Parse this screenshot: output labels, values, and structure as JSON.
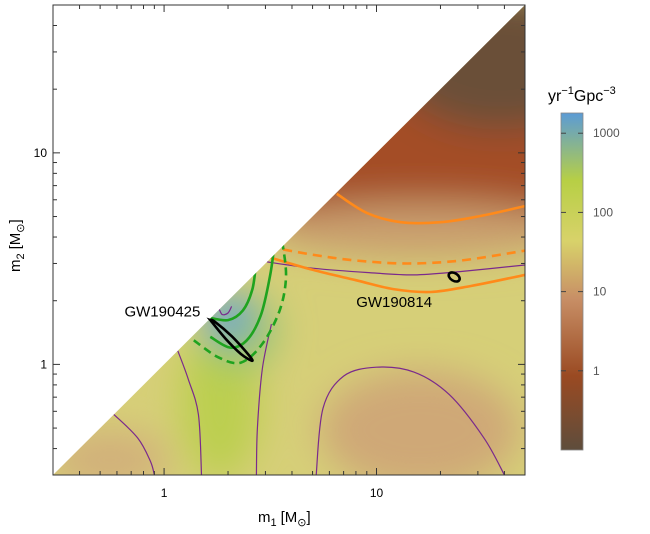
{
  "chart_data": {
    "type": "heatmap",
    "title": "",
    "xlabel_main": "m",
    "xlabel_sub": "1",
    "xlabel_unit": "[M",
    "xlabel_unit_sub": "⊙",
    "xlabel_close": "]",
    "ylabel_main": "m",
    "ylabel_sub": "2",
    "ylabel_unit": "[M",
    "ylabel_unit_sub": "⊙",
    "ylabel_close": "]",
    "x_scale": "log",
    "y_scale": "log",
    "xlim": [
      0.3,
      50
    ],
    "ylim": [
      0.3,
      50
    ],
    "x_ticks": [
      {
        "value": 1,
        "label": "1"
      },
      {
        "value": 10,
        "label": "10"
      }
    ],
    "y_ticks": [
      {
        "value": 1,
        "label": "1"
      },
      {
        "value": 10,
        "label": "10"
      }
    ],
    "colorbar": {
      "label_prefix": "yr",
      "label_exp1": "−1",
      "label_mid": "Gpc",
      "label_exp2": "−3",
      "scale": "log",
      "range": [
        0.1,
        1800
      ],
      "ticks": [
        {
          "value": 1000,
          "label": "1000"
        },
        {
          "value": 100,
          "label": "100"
        },
        {
          "value": 10,
          "label": "10"
        },
        {
          "value": 1,
          "label": "1"
        }
      ],
      "colors": [
        "#5e4d3c",
        "#9a4a22",
        "#c88f66",
        "#d8d26a",
        "#b7cf45",
        "#5b9bd5"
      ]
    },
    "region": "m2 <= m1",
    "annotations": [
      {
        "text": "GW190425",
        "m1": 1.6,
        "m2": 1.4
      },
      {
        "text": "GW190814",
        "m1": 23.2,
        "m2": 2.59
      }
    ],
    "event_contours": [
      {
        "name": "GW190425",
        "color": "#000000",
        "points": [
          [
            1.65,
            1.62
          ],
          [
            1.95,
            1.32
          ],
          [
            2.3,
            1.12
          ],
          [
            2.6,
            1.04
          ],
          [
            2.48,
            1.12
          ],
          [
            2.08,
            1.36
          ],
          [
            1.72,
            1.6
          ]
        ]
      },
      {
        "name": "GW190814",
        "color": "#000000",
        "center": [
          23.2,
          2.59
        ],
        "rx": 0.045,
        "ry": 0.018
      }
    ],
    "green_contours": [
      {
        "style": "solid",
        "points": [
          [
            1.6,
            1.67
          ],
          [
            2.0,
            1.62
          ],
          [
            2.35,
            1.8
          ],
          [
            2.6,
            2.25
          ],
          [
            2.7,
            2.9
          ]
        ]
      },
      {
        "style": "solid",
        "points": [
          [
            1.65,
            1.35
          ],
          [
            2.05,
            1.2
          ],
          [
            2.45,
            1.3
          ],
          [
            2.85,
            1.7
          ],
          [
            3.15,
            2.6
          ],
          [
            3.3,
            3.6
          ]
        ]
      },
      {
        "style": "dashed",
        "points": [
          [
            1.38,
            1.3
          ],
          [
            1.8,
            1.08
          ],
          [
            2.3,
            1.02
          ],
          [
            2.9,
            1.25
          ],
          [
            3.5,
            1.8
          ],
          [
            3.75,
            2.6
          ],
          [
            3.6,
            3.8
          ]
        ]
      }
    ],
    "orange_contours": [
      {
        "style": "solid",
        "points": [
          [
            6.5,
            6.4
          ],
          [
            9,
            5.2
          ],
          [
            13,
            4.7
          ],
          [
            20,
            4.7
          ],
          [
            30,
            5.0
          ],
          [
            50,
            5.6
          ]
        ]
      },
      {
        "style": "dashed",
        "points": [
          [
            3.1,
            3.6
          ],
          [
            5,
            3.3
          ],
          [
            8,
            3.1
          ],
          [
            14,
            3.0
          ],
          [
            25,
            3.1
          ],
          [
            50,
            3.45
          ]
        ]
      },
      {
        "style": "solid",
        "points": [
          [
            3.0,
            3.25
          ],
          [
            5,
            2.8
          ],
          [
            8,
            2.5
          ],
          [
            12,
            2.27
          ],
          [
            18,
            2.2
          ],
          [
            28,
            2.35
          ],
          [
            50,
            2.65
          ]
        ]
      }
    ],
    "purple_contours": [
      {
        "points": [
          [
            1.82,
            1.82
          ],
          [
            1.88,
            1.72
          ],
          [
            2.0,
            1.75
          ],
          [
            2.08,
            1.88
          ]
        ]
      },
      {
        "points": [
          [
            0.58,
            0.58
          ],
          [
            0.75,
            0.45
          ],
          [
            0.86,
            0.35
          ],
          [
            0.9,
            0.3
          ]
        ]
      },
      {
        "points": [
          [
            1.16,
            1.16
          ],
          [
            1.3,
            0.85
          ],
          [
            1.45,
            0.58
          ],
          [
            1.5,
            0.3
          ]
        ]
      },
      {
        "points": [
          [
            3.2,
            1.55
          ],
          [
            2.9,
            0.95
          ],
          [
            2.75,
            0.5
          ],
          [
            2.72,
            0.3
          ]
        ]
      },
      {
        "points": [
          [
            5.2,
            0.3
          ],
          [
            5.6,
            0.62
          ],
          [
            7,
            0.88
          ],
          [
            10,
            0.97
          ],
          [
            15,
            0.92
          ],
          [
            22,
            0.72
          ],
          [
            32,
            0.45
          ],
          [
            40,
            0.3
          ]
        ]
      },
      {
        "points": [
          [
            3.05,
            3.05
          ],
          [
            5,
            2.85
          ],
          [
            9,
            2.72
          ],
          [
            15,
            2.65
          ],
          [
            25,
            2.75
          ],
          [
            50,
            2.95
          ]
        ]
      }
    ]
  }
}
